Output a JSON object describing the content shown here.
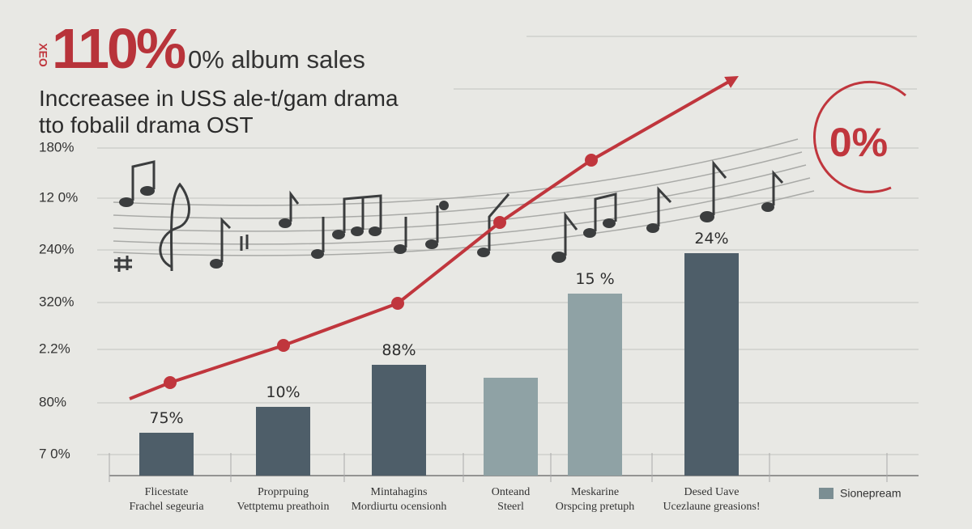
{
  "header": {
    "side_mark": "XEO",
    "big_number": "110%",
    "headline_rest": "0% album sales",
    "subtitle_lines": [
      "Inccreasee in USS ale-t/gam drama",
      "tto fobalil drama OST"
    ]
  },
  "badge": "0%",
  "y_axis_labels": [
    "180%",
    "12 0%",
    "240%",
    "320%",
    "2.2%",
    "80%",
    "7 0%"
  ],
  "bars": [
    {
      "value_label": "75%",
      "category": [
        "Flicestate",
        "Frachel segeuria"
      ]
    },
    {
      "value_label": "10%",
      "category": [
        "Proprpuing",
        "Vettptemu preathoin"
      ]
    },
    {
      "value_label": "88%",
      "category": [
        "Mintahagins",
        "Mordiurtu ocensionh"
      ]
    },
    {
      "value_label": null,
      "category": [
        "Onteand",
        "Steerl"
      ]
    },
    {
      "value_label": "15 %",
      "category": [
        "Meskarine",
        "Orspcing pretuph"
      ]
    },
    {
      "value_label": "24%",
      "category": [
        "Desed Uave",
        "Ucezlaune greasions!"
      ]
    }
  ],
  "legend": "Sionepream"
}
